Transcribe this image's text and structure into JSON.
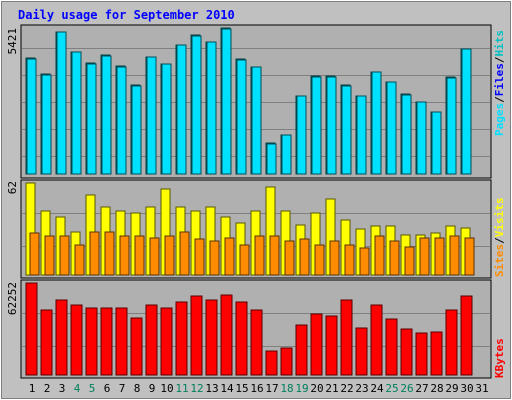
{
  "chart_data": {
    "type": "bar",
    "title": "Daily usage for September 2010",
    "categories": [
      "1",
      "2",
      "3",
      "4",
      "5",
      "6",
      "7",
      "8",
      "9",
      "10",
      "11",
      "12",
      "13",
      "14",
      "15",
      "16",
      "17",
      "18",
      "19",
      "20",
      "21",
      "22",
      "23",
      "24",
      "25",
      "26",
      "27",
      "28",
      "29",
      "30",
      "31"
    ],
    "weekend_days": [
      "4",
      "5",
      "11",
      "12",
      "18",
      "19",
      "25",
      "26"
    ],
    "colors": {
      "background": "#c0c0c0",
      "plot": "#b0b0b0",
      "hits": "#00c0c0",
      "pages": "#00e0ff",
      "visits": "#ffff00",
      "sites": "#ff8c00",
      "kbytes": "#ff0000",
      "title": "#0000ff",
      "weekend_label": "#00805c"
    },
    "panels": [
      {
        "max_label": "5421",
        "ylim": [
          0,
          5421
        ],
        "legend": [
          {
            "text": "Pages",
            "color": "#00e0ff"
          },
          {
            "text": "Files",
            "color": "#0000ff"
          },
          {
            "text": "Hits",
            "color": "#00c0c0"
          }
        ],
        "series": [
          {
            "name": "Hits",
            "values": [
              4310,
              3700,
              5280,
              4540,
              4120,
              4400,
              4000,
              3290,
              4350,
              4090,
              4800,
              5150,
              4910,
              5420,
              4270,
              3980,
              1150,
              1460,
              2910,
              3640,
              3640,
              3300,
              2910,
              3800,
              3430,
              2970,
              2680,
              2310,
              3590,
              4650,
              null
            ]
          },
          {
            "name": "Pages",
            "values": [
              4280,
              3680,
              5260,
              4520,
              4100,
              4380,
              3980,
              3270,
              4330,
              4070,
              4780,
              5130,
              4890,
              5400,
              4250,
              3960,
              1130,
              1440,
              2890,
              3620,
              3620,
              3280,
              2890,
              3780,
              3410,
              2950,
              2660,
              2290,
              3570,
              4630,
              null
            ]
          }
        ]
      },
      {
        "max_label": "62",
        "ylim": [
          0,
          62
        ],
        "legend": [
          {
            "text": "Sites",
            "color": "#ff8c00"
          },
          {
            "text": "Visits",
            "color": "#ffff00"
          }
        ],
        "series": [
          {
            "name": "Visits",
            "values": [
              62,
              43,
              39,
              29,
              54,
              46,
              43,
              42,
              46,
              58,
              46,
              43,
              46,
              39,
              35,
              43,
              59,
              43,
              34,
              42,
              51,
              37,
              31,
              33,
              33,
              27,
              27,
              28,
              33,
              32,
              null
            ]
          },
          {
            "name": "Sites",
            "values": [
              28,
              26,
              26,
              20,
              29,
              29,
              26,
              26,
              25,
              26,
              29,
              24,
              23,
              25,
              20,
              26,
              26,
              23,
              24,
              20,
              23,
              20,
              18,
              26,
              23,
              19,
              25,
              25,
              26,
              25,
              null
            ]
          }
        ]
      },
      {
        "max_label": "62252",
        "ylim": [
          0,
          62252
        ],
        "legend": [
          {
            "text": "KBytes",
            "color": "#ff0000"
          }
        ],
        "series": [
          {
            "name": "KBytes",
            "values": [
              62200,
              44000,
              51000,
              47500,
              45200,
              45600,
              45400,
              38400,
              47100,
              45600,
              49300,
              53300,
              50700,
              54300,
              49200,
              43800,
              16400,
              18600,
              34100,
              41200,
              40200,
              50700,
              31800,
              47300,
              38000,
              31400,
              28700,
              29300,
              43800,
              53500,
              null
            ]
          }
        ]
      }
    ]
  }
}
